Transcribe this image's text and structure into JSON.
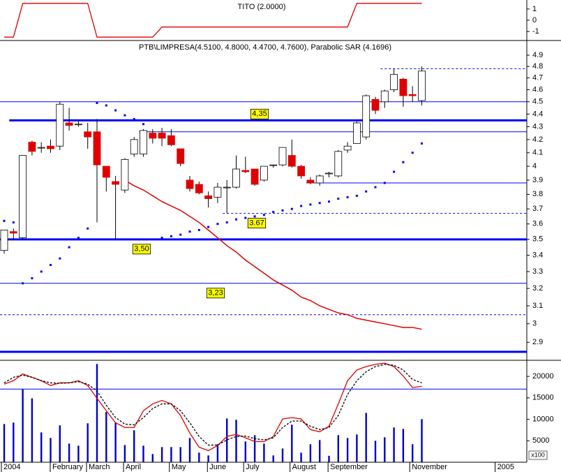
{
  "chart_data": [
    {
      "type": "line",
      "title": "TITO (2.0000)",
      "series": [
        {
          "color": "#e00000",
          "values": [
            -1.5,
            -1.5,
            1.5,
            1.5,
            1.5,
            1.5,
            1.5,
            1.5,
            1.5,
            1.5,
            -1.5,
            -1.5,
            -1.5,
            -1.5,
            -1.5,
            -1.5,
            -1.5,
            -0.6,
            -0.6,
            -0.6,
            -0.6,
            -0.6,
            -0.6,
            -0.6,
            -0.6,
            -0.6,
            -0.6,
            -0.6,
            -0.6,
            -0.6,
            -0.6,
            -0.6,
            -0.6,
            -0.6,
            -0.6,
            -0.6,
            -0.6,
            -0.6,
            1.5,
            1.5,
            1.5,
            1.5,
            1.5,
            1.5,
            1.5,
            1.5
          ]
        }
      ],
      "ylim": [
        -1.8,
        1.8
      ],
      "yticks": [
        1,
        0,
        -1
      ]
    },
    {
      "type": "candlestick",
      "title": "PTB\\LIMPRESA(4.5100, 4.8000, 4.4700, 4.7600), Parabolic SAR (4.1696)",
      "categories": [
        null,
        null,
        null,
        null,
        null,
        null,
        null,
        null,
        null,
        null,
        null,
        null,
        null,
        null,
        null,
        null,
        null,
        null,
        null,
        null,
        null,
        null,
        null,
        null,
        null,
        null,
        null,
        null,
        null,
        null,
        null,
        null,
        null,
        null,
        null,
        null,
        null,
        null,
        null,
        null,
        null,
        null,
        null,
        null,
        null,
        null
      ],
      "open": [
        3.43,
        3.55,
        3.51,
        4.18,
        4.14,
        4.15,
        4.15,
        4.33,
        4.32,
        4.26,
        4.26,
        4.0,
        3.89,
        3.83,
        4.09,
        4.09,
        4.25,
        4.25,
        4.23,
        4.13,
        3.9,
        3.87,
        3.79,
        3.78,
        3.85,
        3.85,
        3.97,
        3.98,
        3.9,
        4.01,
        4.01,
        4.08,
        4.0,
        3.9,
        3.88,
        3.95,
        3.93,
        4.12,
        4.17,
        4.22,
        4.52,
        4.5,
        4.6,
        4.69,
        4.56,
        4.51
      ],
      "high": [
        3.56,
        3.57,
        4.08,
        4.19,
        4.18,
        4.2,
        4.5,
        4.45,
        4.34,
        4.33,
        4.36,
        4.0,
        3.93,
        4.06,
        4.22,
        4.28,
        4.28,
        4.29,
        4.28,
        4.13,
        3.93,
        3.89,
        3.82,
        3.88,
        3.9,
        4.08,
        4.07,
        3.98,
        4.0,
        4.01,
        4.14,
        4.2,
        4.01,
        3.92,
        3.94,
        3.96,
        4.12,
        4.18,
        4.34,
        4.56,
        4.54,
        4.6,
        4.78,
        4.7,
        4.63,
        4.8
      ],
      "low": [
        3.41,
        3.5,
        3.5,
        4.08,
        4.1,
        4.1,
        4.12,
        4.27,
        4.3,
        4.13,
        3.61,
        3.82,
        3.5,
        3.81,
        4.07,
        4.07,
        4.17,
        4.15,
        4.15,
        4.0,
        3.82,
        3.8,
        3.71,
        3.74,
        3.67,
        3.84,
        3.95,
        3.86,
        3.89,
        3.99,
        4.0,
        3.99,
        3.91,
        3.87,
        3.86,
        3.92,
        3.92,
        4.1,
        4.17,
        4.2,
        4.4,
        4.45,
        4.58,
        4.46,
        4.5,
        4.47
      ],
      "close": [
        3.56,
        3.54,
        4.08,
        4.11,
        4.14,
        4.13,
        4.48,
        4.31,
        4.32,
        4.22,
        4.01,
        3.92,
        3.87,
        4.05,
        4.2,
        4.27,
        4.21,
        4.21,
        4.16,
        4.02,
        3.84,
        3.81,
        3.77,
        3.85,
        3.85,
        3.98,
        3.96,
        3.87,
        4.0,
        4.01,
        4.14,
        4.0,
        3.93,
        3.88,
        3.93,
        3.95,
        4.11,
        4.15,
        4.33,
        4.55,
        4.43,
        4.59,
        4.73,
        4.55,
        4.55,
        4.76
      ],
      "up_color": "#ffffff",
      "down_color": "#e00000",
      "sar": {
        "color": "#0000ff",
        "values": [
          3.62,
          3.61,
          3.23,
          3.26,
          3.3,
          3.34,
          3.38,
          3.45,
          3.51,
          3.57,
          4.49,
          4.47,
          4.43,
          4.39,
          4.36,
          4.32,
          null,
          3.51,
          3.52,
          3.53,
          3.55,
          3.56,
          3.58,
          3.6,
          3.61,
          3.63,
          3.64,
          3.65,
          3.66,
          3.68,
          3.69,
          3.7,
          3.72,
          3.73,
          3.74,
          3.75,
          3.77,
          3.78,
          3.79,
          3.82,
          3.85,
          3.88,
          3.96,
          4.03,
          4.1,
          4.17
        ]
      },
      "moving_average": {
        "color": "#e00000",
        "values": [
          null,
          null,
          null,
          null,
          null,
          null,
          null,
          null,
          null,
          null,
          null,
          null,
          null,
          3.9,
          3.86,
          3.83,
          3.79,
          3.75,
          3.72,
          3.69,
          3.65,
          3.61,
          3.56,
          3.51,
          3.46,
          3.42,
          3.37,
          3.33,
          3.29,
          3.25,
          3.22,
          3.19,
          3.15,
          3.13,
          3.1,
          3.08,
          3.06,
          3.05,
          3.03,
          3.02,
          3.01,
          3.0,
          2.99,
          2.98,
          2.98,
          2.97
        ]
      },
      "log": true,
      "ylim": [
        2.81,
        5.02
      ],
      "yticks": [
        2.9,
        3.0,
        3.1,
        3.2,
        3.3,
        3.4,
        3.5,
        3.6,
        3.7,
        3.8,
        3.9,
        4.0,
        4.1,
        4.2,
        4.3,
        4.4,
        4.5,
        4.6,
        4.7,
        4.8,
        4.9
      ],
      "hlines": [
        {
          "value": 4.78,
          "style": "dashed",
          "from": 41
        },
        {
          "value": 4.5,
          "style": "thin",
          "from": 0
        },
        {
          "value": 4.35,
          "style": "thick",
          "from": 1,
          "label": "4,35"
        },
        {
          "value": 4.26,
          "style": "thin",
          "from": 15
        },
        {
          "value": 3.88,
          "style": "thin",
          "from": 33
        },
        {
          "value": 3.67,
          "style": "dashed",
          "from": 24,
          "label": "3.67"
        },
        {
          "value": 3.5,
          "style": "thick",
          "from": 0,
          "label": "3,50"
        },
        {
          "value": 3.23,
          "style": "thin",
          "from": 0,
          "label": "3,23"
        },
        {
          "value": 3.05,
          "style": "dashed",
          "from": 0
        },
        {
          "value": 2.85,
          "style": "thick",
          "from": 0
        }
      ]
    },
    {
      "type": "bar",
      "color": "#0000cc",
      "values": [
        8900,
        9240,
        17050,
        14900,
        6950,
        5650,
        8600,
        4350,
        3860,
        9070,
        22900,
        11700,
        9240,
        4000,
        7440,
        3860,
        1900,
        3530,
        3530,
        3530,
        5650,
        2230,
        1580,
        4190,
        10200,
        9890,
        4840,
        6300,
        4350,
        1580,
        3200,
        8750,
        2230,
        4190,
        5160,
        1500,
        6300,
        5650,
        6470,
        11500,
        5000,
        5810,
        8100,
        7770,
        4190,
        10050
      ],
      "series": [
        {
          "color": "#e00000",
          "values": [
            18200,
            19000,
            20600,
            19800,
            19000,
            17900,
            18500,
            18500,
            19000,
            17900,
            14900,
            12000,
            9200,
            8100,
            8100,
            12000,
            13600,
            14400,
            13600,
            10900,
            6800,
            3500,
            2700,
            3900,
            6000,
            6500,
            5700,
            4800,
            4800,
            6000,
            10100,
            10400,
            10100,
            7600,
            7100,
            8400,
            13600,
            19000,
            21500,
            22300,
            22800,
            23100,
            22300,
            20100,
            17400,
            17700
          ]
        },
        {
          "color": "#000000",
          "dashed": true,
          "values": [
            18500,
            19800,
            20300,
            19800,
            19000,
            18500,
            18400,
            18500,
            18800,
            18200,
            16600,
            13300,
            10400,
            8900,
            8700,
            10400,
            12500,
            13600,
            13600,
            12000,
            9200,
            6000,
            4000,
            4000,
            5200,
            6000,
            6100,
            5500,
            5200,
            5700,
            8100,
            9600,
            9600,
            8400,
            7600,
            8100,
            10900,
            15800,
            19000,
            21100,
            22300,
            22800,
            22600,
            21500,
            19300,
            18500
          ]
        }
      ],
      "hlines": [
        {
          "value": 17050,
          "style": "thin",
          "from": 0
        }
      ],
      "ylim": [
        0,
        23600
      ],
      "yticks": [
        5000,
        10000,
        15000,
        20000
      ],
      "unit_label": "x100",
      "xticks": [
        {
          "value": -0.3,
          "label": "2004"
        },
        {
          "value": 4.96,
          "label": "February"
        },
        {
          "value": 8.87,
          "label": "March"
        },
        {
          "value": 12.86,
          "label": "April"
        },
        {
          "value": 17.8,
          "label": "May"
        },
        {
          "value": 21.9,
          "label": "June"
        },
        {
          "value": 25.8,
          "label": "July"
        },
        {
          "value": 30.8,
          "label": "August"
        },
        {
          "value": 34.9,
          "label": "September"
        },
        {
          "value": 43.7,
          "label": "November"
        },
        {
          "value": 52.9,
          "label": "2005"
        }
      ]
    }
  ]
}
